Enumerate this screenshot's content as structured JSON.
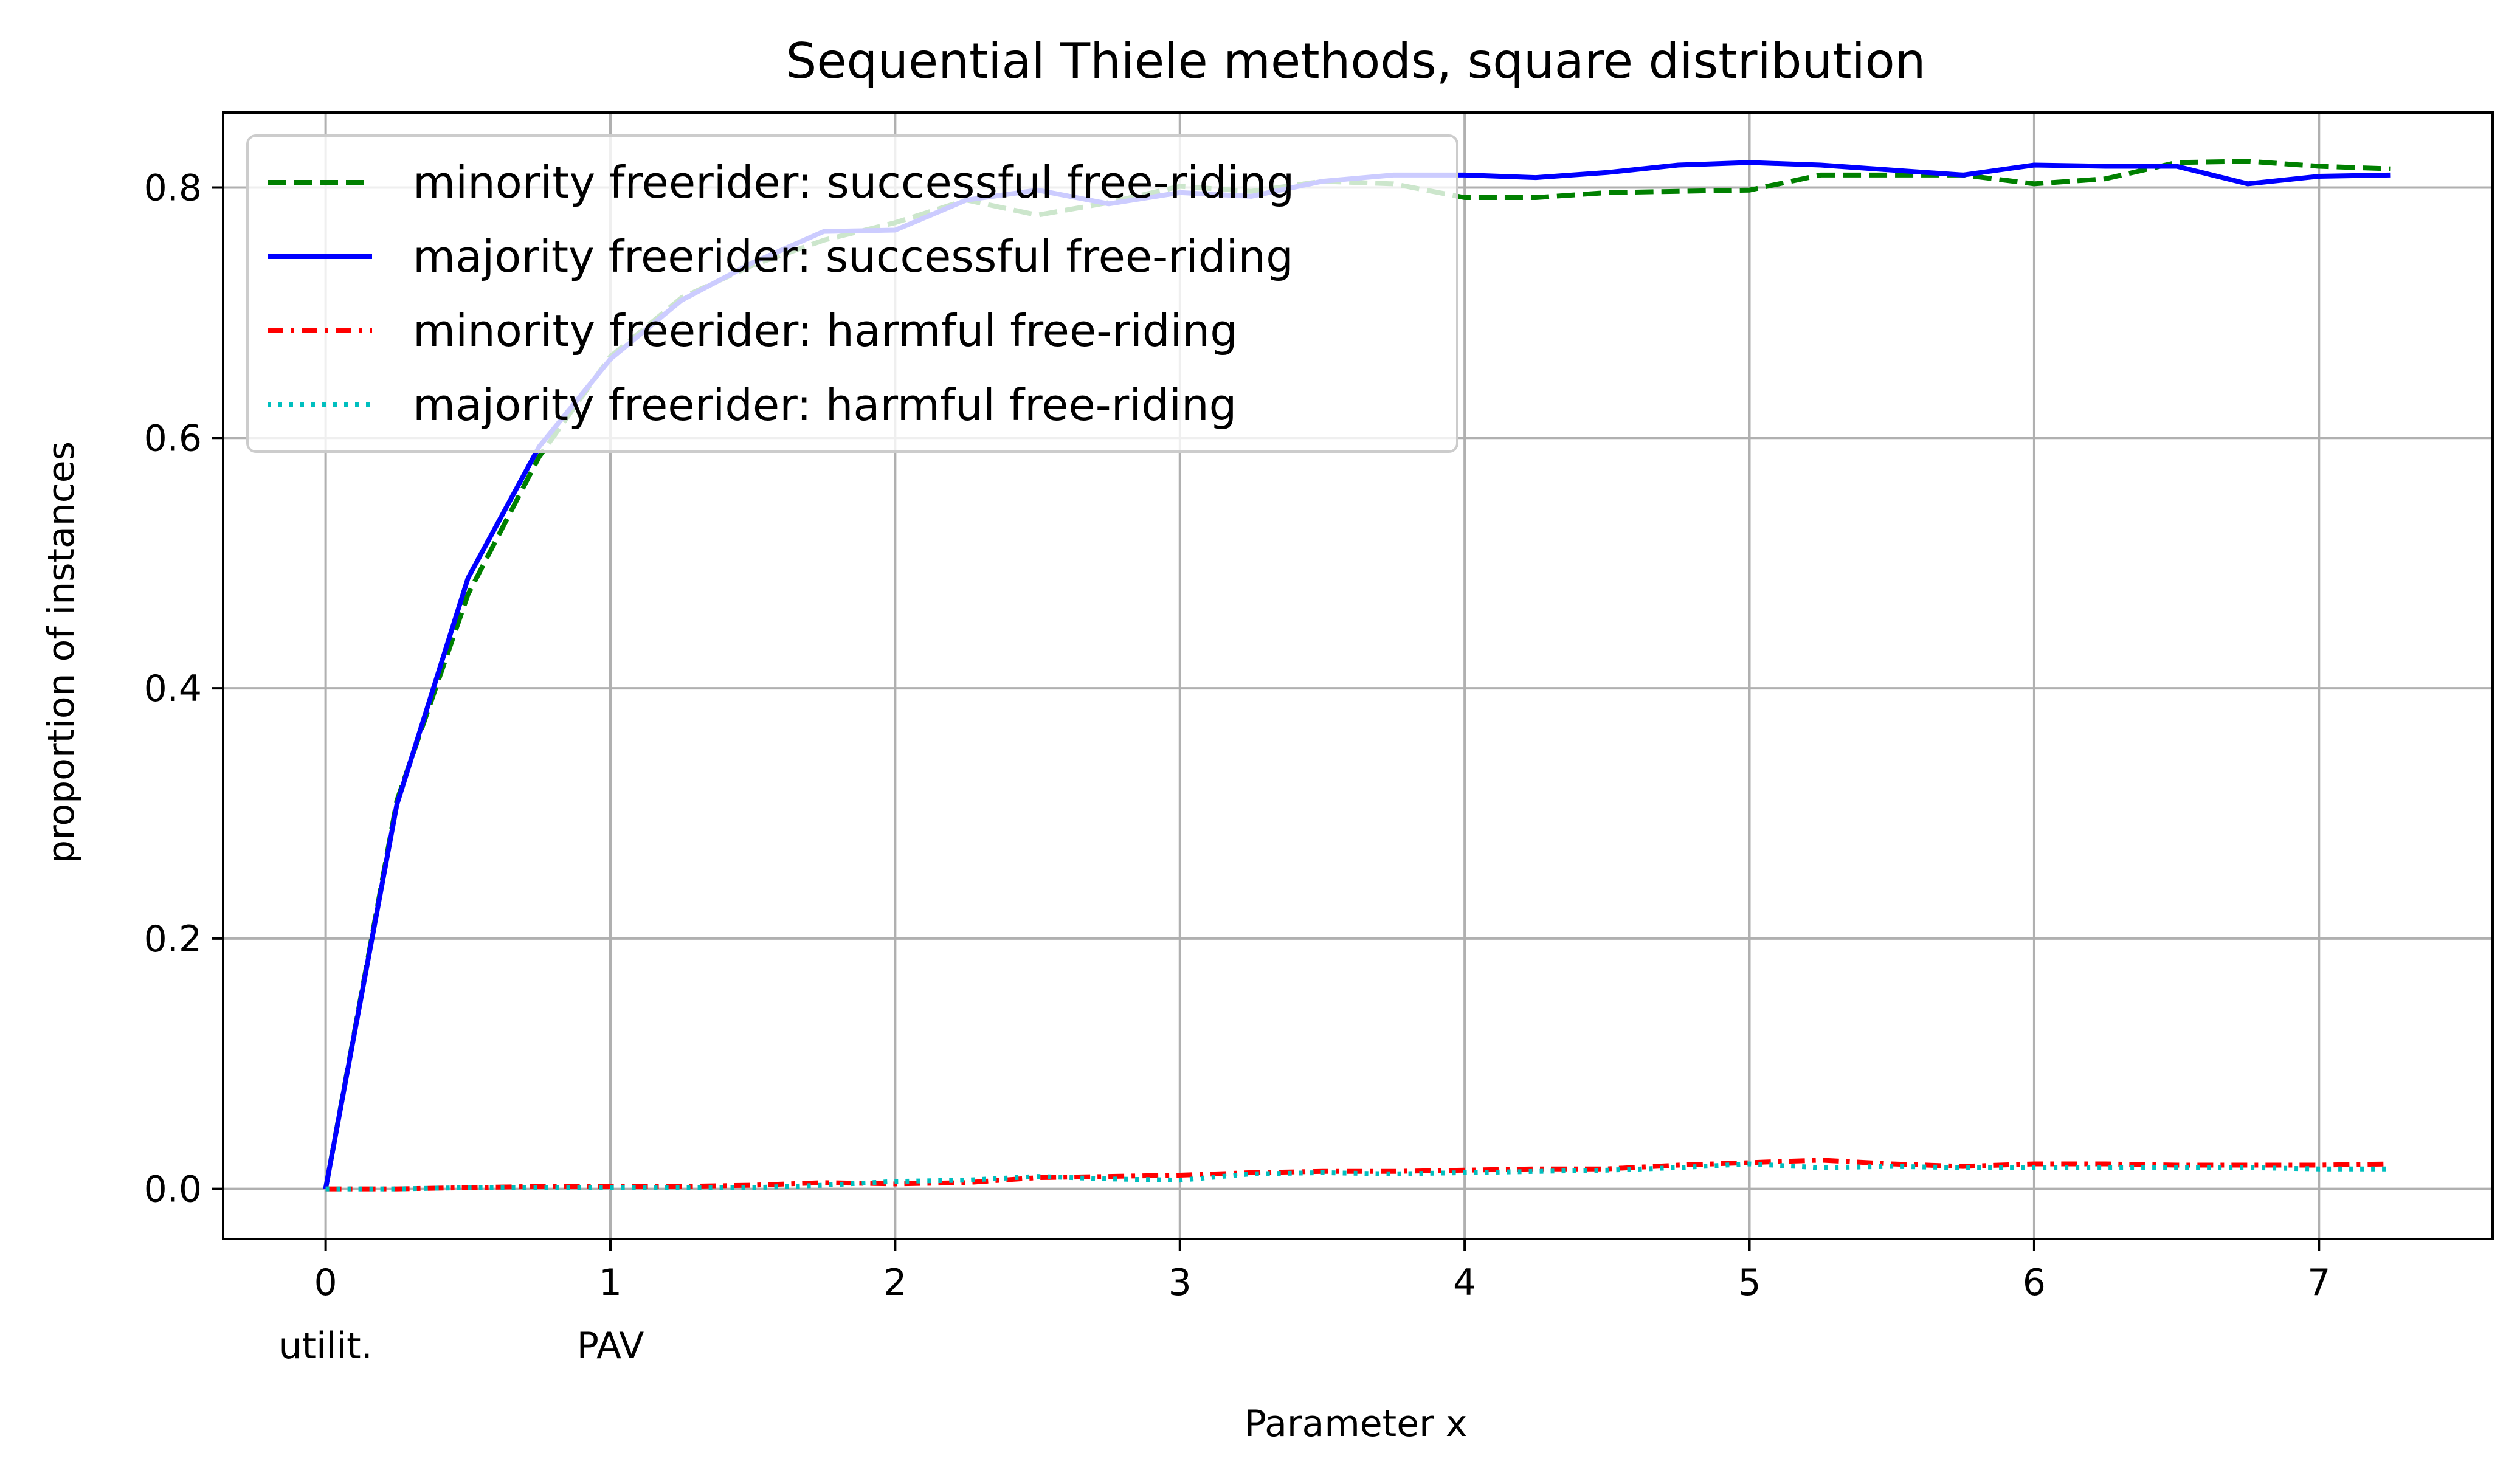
{
  "chart_data": {
    "type": "line",
    "title": "Sequential Thiele methods, square distribution",
    "xlabel": "Parameter x",
    "ylabel": "proportion of instances",
    "xlim": [
      -0.36,
      7.61
    ],
    "ylim": [
      -0.04,
      0.86
    ],
    "xticks": [
      {
        "value": 0,
        "label": "0",
        "sublabel": "utilit."
      },
      {
        "value": 1,
        "label": "1",
        "sublabel": "PAV"
      },
      {
        "value": 2,
        "label": "2",
        "sublabel": ""
      },
      {
        "value": 3,
        "label": "3",
        "sublabel": ""
      },
      {
        "value": 4,
        "label": "4",
        "sublabel": ""
      },
      {
        "value": 5,
        "label": "5",
        "sublabel": ""
      },
      {
        "value": 6,
        "label": "6",
        "sublabel": ""
      },
      {
        "value": 7,
        "label": "7",
        "sublabel": ""
      }
    ],
    "yticks": [
      {
        "value": 0.0,
        "label": "0.0"
      },
      {
        "value": 0.2,
        "label": "0.2"
      },
      {
        "value": 0.4,
        "label": "0.4"
      },
      {
        "value": 0.6,
        "label": "0.6"
      },
      {
        "value": 0.8,
        "label": "0.8"
      }
    ],
    "grid": true,
    "legend_position": "upper-left",
    "x": [
      0,
      0.25,
      0.5,
      0.75,
      1,
      1.25,
      1.5,
      1.75,
      2,
      2.25,
      2.5,
      2.75,
      3,
      3.25,
      3.5,
      3.75,
      4,
      4.25,
      4.5,
      4.75,
      5,
      5.25,
      5.5,
      5.75,
      6,
      6.25,
      6.5,
      6.75,
      7,
      7.25
    ],
    "series": [
      {
        "name": "minority freerider: successful free-riding",
        "color": "#008000",
        "dash": "dashed",
        "values": [
          0.0,
          0.31,
          0.475,
          0.585,
          0.665,
          0.712,
          0.738,
          0.758,
          0.772,
          0.79,
          0.778,
          0.788,
          0.801,
          0.797,
          0.805,
          0.803,
          0.792,
          0.792,
          0.796,
          0.797,
          0.798,
          0.81,
          0.81,
          0.81,
          0.803,
          0.807,
          0.82,
          0.821,
          0.817,
          0.815
        ]
      },
      {
        "name": "majority freerider: successful free-riding",
        "color": "#0000ff",
        "dash": "solid",
        "values": [
          0.0,
          0.307,
          0.488,
          0.593,
          0.663,
          0.71,
          0.74,
          0.765,
          0.766,
          0.79,
          0.798,
          0.787,
          0.796,
          0.793,
          0.805,
          0.81,
          0.81,
          0.808,
          0.812,
          0.818,
          0.82,
          0.818,
          0.814,
          0.81,
          0.818,
          0.817,
          0.817,
          0.803,
          0.809,
          0.81
        ]
      },
      {
        "name": "minority freerider: harmful free-riding",
        "color": "#ff0000",
        "dash": "dashdot",
        "values": [
          0.0,
          0.0,
          0.001,
          0.002,
          0.002,
          0.002,
          0.003,
          0.005,
          0.004,
          0.005,
          0.009,
          0.01,
          0.011,
          0.013,
          0.014,
          0.014,
          0.015,
          0.016,
          0.016,
          0.019,
          0.021,
          0.023,
          0.02,
          0.018,
          0.02,
          0.02,
          0.019,
          0.019,
          0.019,
          0.02
        ]
      },
      {
        "name": "majority freerider: harmful free-riding",
        "color": "#00bfbf",
        "dash": "dotted",
        "values": [
          0.0,
          0.0,
          0.001,
          0.001,
          0.001,
          0.001,
          0.001,
          0.003,
          0.006,
          0.007,
          0.01,
          0.008,
          0.007,
          0.012,
          0.013,
          0.012,
          0.013,
          0.014,
          0.015,
          0.017,
          0.02,
          0.017,
          0.018,
          0.017,
          0.017,
          0.017,
          0.017,
          0.017,
          0.016,
          0.016
        ]
      }
    ]
  }
}
